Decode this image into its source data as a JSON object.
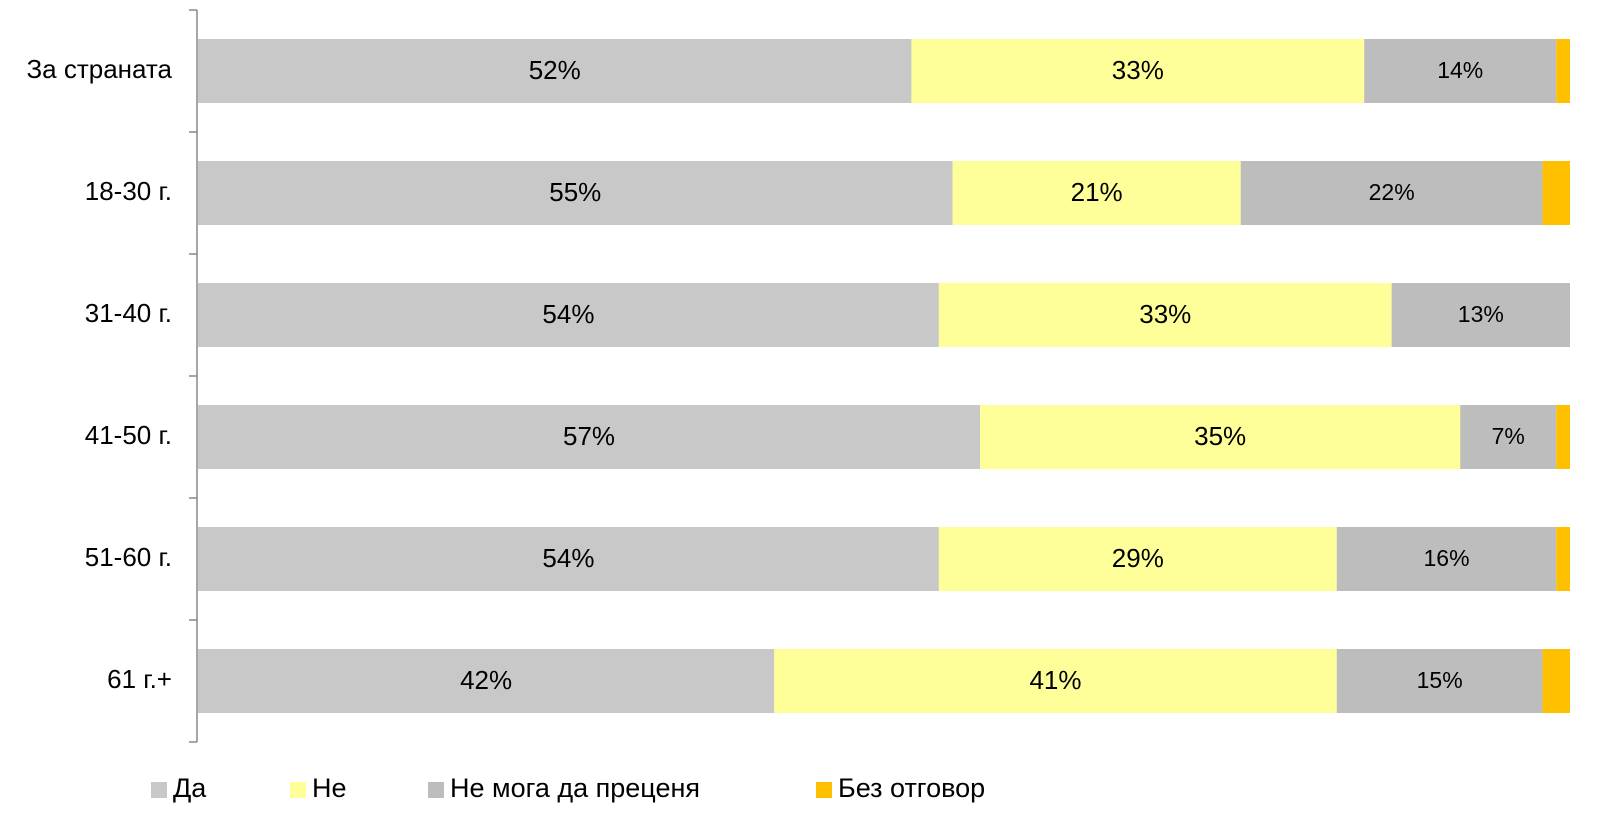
{
  "chart_data": {
    "type": "stacked-bar-horizontal",
    "categories": [
      "За страната",
      "18-30 г.",
      "31-40 г.",
      "41-50 г.",
      "51-60 г.",
      "61 г.+"
    ],
    "series": [
      {
        "name": "Да",
        "color": "#c8c8c8",
        "values": [
          52,
          55,
          54,
          57,
          54,
          42
        ],
        "value_labels": [
          "52%",
          "55%",
          "54%",
          "57%",
          "54%",
          "42%"
        ]
      },
      {
        "name": "Не",
        "color": "#ffff99",
        "values": [
          33,
          21,
          33,
          35,
          29,
          41
        ],
        "value_labels": [
          "33%",
          "21%",
          "33%",
          "35%",
          "29%",
          "41%"
        ]
      },
      {
        "name": "Не мога да преценя",
        "color": "#bdbdbd",
        "values": [
          14,
          22,
          13,
          7,
          16,
          15
        ],
        "value_labels": [
          "14%",
          "22%",
          "13%",
          "7%",
          "16%",
          "15%"
        ]
      },
      {
        "name": "Без отговор",
        "color": "#ffc000",
        "values": [
          1,
          2,
          0,
          1,
          1,
          2
        ]
      }
    ]
  }
}
